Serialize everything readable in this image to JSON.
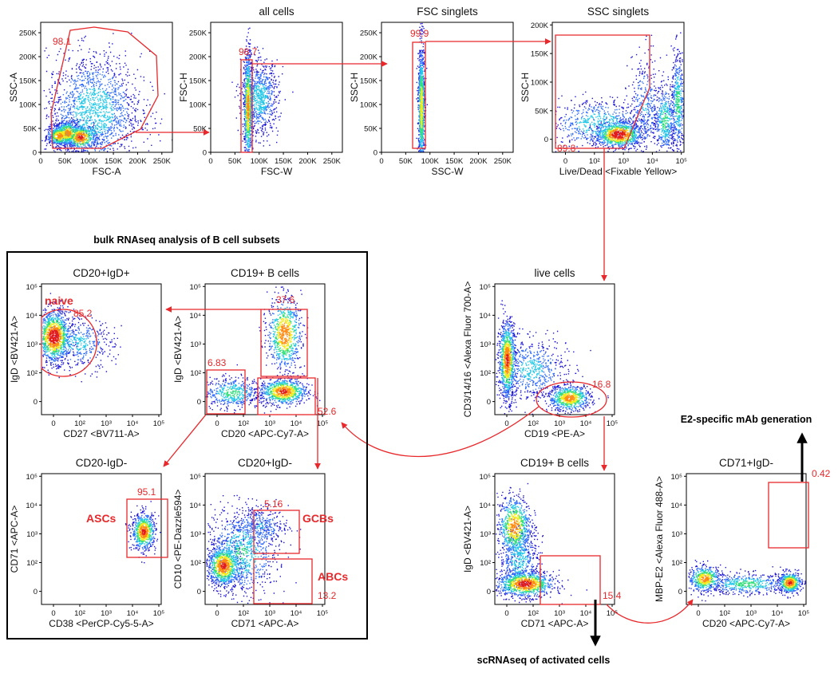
{
  "colors": {
    "gate": "#e8282b",
    "text": "#111111",
    "arrow_black": "#000000",
    "density": [
      "#1b14d8",
      "#2f6bff",
      "#22c7e8",
      "#32e07a",
      "#f2ea1a",
      "#ff8a12",
      "#e31a1c"
    ]
  },
  "annotations": {
    "bulk_label": "bulk RNAseq analysis of B cell subsets",
    "mab_label": "E2-specific mAb generation",
    "scrna_label": "scRNAseq of activated cells"
  },
  "panels": [
    {
      "id": "p1",
      "title": "",
      "xlabel": "FSC-A",
      "ylabel": "SSC-A",
      "scale": "linear",
      "xticks": [
        "0",
        "50K",
        "100K",
        "150K",
        "200K",
        "250K"
      ],
      "yticks": [
        "0",
        "50K",
        "100K",
        "150K",
        "200K",
        "250K"
      ],
      "gates": [
        {
          "label": "98.1"
        }
      ],
      "pops": [
        {
          "x": 0.14,
          "y": 0.13,
          "sx": 0.05,
          "sy": 0.04,
          "n": 450,
          "w": 1.6
        },
        {
          "x": 0.2,
          "y": 0.15,
          "sx": 0.05,
          "sy": 0.05,
          "n": 450,
          "w": 1.6
        },
        {
          "x": 0.3,
          "y": 0.12,
          "sx": 0.06,
          "sy": 0.05,
          "n": 500,
          "w": 1.8
        },
        {
          "x": 0.4,
          "y": 0.32,
          "sx": 0.18,
          "sy": 0.22,
          "n": 1700,
          "w": 0.8
        }
      ]
    },
    {
      "id": "p2",
      "title": "all cells",
      "xlabel": "FSC-W",
      "ylabel": "FSC-H",
      "scale": "linear",
      "xticks": [
        "0",
        "50K",
        "100K",
        "150K",
        "200K",
        "250K"
      ],
      "yticks": [
        "0",
        "50K",
        "100K",
        "150K",
        "200K",
        "250K"
      ],
      "gates": [
        {
          "label": "98.7"
        }
      ],
      "pops": [
        {
          "x": 0.28,
          "y": 0.35,
          "sx": 0.015,
          "sy": 0.22,
          "n": 900,
          "w": 1.6
        },
        {
          "x": 0.37,
          "y": 0.42,
          "sx": 0.07,
          "sy": 0.14,
          "n": 800,
          "w": 0.8
        }
      ]
    },
    {
      "id": "p3",
      "title": "FSC singlets",
      "xlabel": "SSC-W",
      "ylabel": "SSC-H",
      "scale": "linear",
      "xticks": [
        "0",
        "50K",
        "100K",
        "150K",
        "200K",
        "250K"
      ],
      "yticks": [
        "0",
        "50K",
        "100K",
        "150K",
        "200K",
        "250K"
      ],
      "gates": [
        {
          "label": "99.9"
        }
      ],
      "pops": [
        {
          "x": 0.3,
          "y": 0.35,
          "sx": 0.012,
          "sy": 0.25,
          "n": 1000,
          "w": 1.4
        }
      ]
    },
    {
      "id": "p4",
      "title": "SSC singlets",
      "xlabel": "Live/Dead <Fixable Yellow>",
      "ylabel": "SSC-H",
      "scale": "log",
      "xticks": [
        "0",
        "10²",
        "10³",
        "10⁴",
        "10⁵"
      ],
      "yticks": [
        "0",
        "50K",
        "100K",
        "150K",
        "200K",
        "250K"
      ],
      "gates": [
        {
          "label": "89.8"
        }
      ],
      "pops": [
        {
          "x": 0.5,
          "y": 0.14,
          "sx": 0.09,
          "sy": 0.05,
          "n": 900,
          "w": 2
        },
        {
          "x": 0.35,
          "y": 0.22,
          "sx": 0.2,
          "sy": 0.1,
          "n": 700,
          "w": 0.8
        },
        {
          "x": 0.85,
          "y": 0.25,
          "sx": 0.04,
          "sy": 0.14,
          "n": 450,
          "w": 1
        },
        {
          "x": 0.95,
          "y": 0.38,
          "sx": 0.025,
          "sy": 0.2,
          "n": 450,
          "w": 1
        },
        {
          "x": 0.7,
          "y": 0.35,
          "sx": 0.06,
          "sy": 0.2,
          "n": 350,
          "w": 0.6
        }
      ]
    },
    {
      "id": "p5",
      "title": "live cells",
      "xlabel": "CD19 <PE-A>",
      "ylabel": "CD3/14/16 <Alexa Fluor 700-A>",
      "scale": "log",
      "xticks": [
        "0",
        "10²",
        "10³",
        "10⁴",
        "10⁵"
      ],
      "yticks": [
        "0",
        "10²",
        "10³",
        "10⁴",
        "10⁵"
      ],
      "gates": [
        {
          "label": "16.8"
        }
      ],
      "pops": [
        {
          "x": 0.1,
          "y": 0.42,
          "sx": 0.035,
          "sy": 0.15,
          "n": 1000,
          "w": 1.8
        },
        {
          "x": 0.62,
          "y": 0.13,
          "sx": 0.09,
          "sy": 0.05,
          "n": 700,
          "w": 1.6
        },
        {
          "x": 0.3,
          "y": 0.35,
          "sx": 0.15,
          "sy": 0.12,
          "n": 600,
          "w": 0.7
        }
      ]
    },
    {
      "id": "p6",
      "title": "CD19+ B cells",
      "xlabel": "CD20 <APC-Cy7-A>",
      "ylabel": "IgD <BV421-A>",
      "scale": "log",
      "xticks": [
        "0",
        "10²",
        "10³",
        "10⁴",
        "10⁵"
      ],
      "yticks": [
        "0",
        "10²",
        "10³",
        "10⁴",
        "10⁵"
      ],
      "gates": [
        {
          "label": "37.6"
        },
        {
          "label": "6.83"
        },
        {
          "label": "52.6"
        }
      ],
      "pops": [
        {
          "x": 0.66,
          "y": 0.62,
          "sx": 0.07,
          "sy": 0.14,
          "n": 800,
          "w": 1.7
        },
        {
          "x": 0.65,
          "y": 0.18,
          "sx": 0.1,
          "sy": 0.05,
          "n": 800,
          "w": 1.8
        },
        {
          "x": 0.22,
          "y": 0.17,
          "sx": 0.12,
          "sy": 0.06,
          "n": 500,
          "w": 1
        }
      ]
    },
    {
      "id": "p7",
      "title": "CD20+IgD+",
      "xlabel": "CD27 <BV711-A>",
      "ylabel": "IgD <BV421-A>",
      "scale": "log",
      "xticks": [
        "0",
        "10²",
        "10³",
        "10⁴",
        "10⁵"
      ],
      "yticks": [
        "0",
        "10²",
        "10³",
        "10⁴",
        "10⁵"
      ],
      "gates": [
        {
          "label": "85.2"
        }
      ],
      "labels": [
        "naive"
      ],
      "pops": [
        {
          "x": 0.1,
          "y": 0.6,
          "sx": 0.07,
          "sy": 0.1,
          "n": 1200,
          "w": 2
        },
        {
          "x": 0.3,
          "y": 0.55,
          "sx": 0.15,
          "sy": 0.1,
          "n": 450,
          "w": 0.7
        }
      ]
    },
    {
      "id": "p8",
      "title": "CD20-IgD-",
      "xlabel": "CD38 <PerCP-Cy5-5-A>",
      "ylabel": "CD71 <APC-A>",
      "scale": "log",
      "xticks": [
        "0",
        "10²",
        "10³",
        "10⁴",
        "10⁵"
      ],
      "yticks": [
        "0",
        "10²",
        "10³",
        "10⁴",
        "10⁵"
      ],
      "gates": [
        {
          "label": "95.1"
        }
      ],
      "labels": [
        "ASCs"
      ],
      "pops": [
        {
          "x": 0.85,
          "y": 0.56,
          "sx": 0.05,
          "sy": 0.07,
          "n": 700,
          "w": 1.8
        }
      ]
    },
    {
      "id": "p9",
      "title": "CD20+IgD-",
      "xlabel": "CD71 <APC-A>",
      "ylabel": "CD10 <PE-Dazzle594>",
      "scale": "log",
      "xticks": [
        "0",
        "10²",
        "10³",
        "10⁴",
        "10⁵"
      ],
      "yticks": [
        "0",
        "10²",
        "10³",
        "10⁴",
        "10⁵"
      ],
      "gates": [
        {
          "label": "5.16"
        },
        {
          "label": "13.2"
        }
      ],
      "labels": [
        "GCBs",
        "ABCs"
      ],
      "pops": [
        {
          "x": 0.15,
          "y": 0.3,
          "sx": 0.07,
          "sy": 0.08,
          "n": 900,
          "w": 1.8
        },
        {
          "x": 0.3,
          "y": 0.4,
          "sx": 0.15,
          "sy": 0.17,
          "n": 900,
          "w": 0.9
        },
        {
          "x": 0.45,
          "y": 0.6,
          "sx": 0.12,
          "sy": 0.08,
          "n": 350,
          "w": 0.6
        }
      ]
    },
    {
      "id": "p10",
      "title": "CD19+ B cells",
      "xlabel": "CD71 <APC-A>",
      "ylabel": "IgD <BV421-A>",
      "scale": "log",
      "xticks": [
        "0",
        "10²",
        "10³",
        "10⁴",
        "10⁵"
      ],
      "yticks": [
        "0",
        "10²",
        "10³",
        "10⁴",
        "10⁵"
      ],
      "gates": [
        {
          "label": "15.4"
        }
      ],
      "pops": [
        {
          "x": 0.16,
          "y": 0.6,
          "sx": 0.07,
          "sy": 0.12,
          "n": 800,
          "w": 1.6
        },
        {
          "x": 0.25,
          "y": 0.16,
          "sx": 0.12,
          "sy": 0.05,
          "n": 1000,
          "w": 1.9
        },
        {
          "x": 0.2,
          "y": 0.35,
          "sx": 0.08,
          "sy": 0.13,
          "n": 500,
          "w": 0.8
        }
      ]
    },
    {
      "id": "p11",
      "title": "CD71+IgD-",
      "xlabel": "CD20 <APC-Cy7-A>",
      "ylabel": "MBP-E2 <Alexa Fluor 488-A>",
      "scale": "log",
      "xticks": [
        "0",
        "10²",
        "10³",
        "10⁴",
        "10⁵"
      ],
      "yticks": [
        "0",
        "10²",
        "10³",
        "10⁴",
        "10⁵"
      ],
      "gates": [
        {
          "label": "0.42"
        }
      ],
      "pops": [
        {
          "x": 0.15,
          "y": 0.2,
          "sx": 0.07,
          "sy": 0.05,
          "n": 500,
          "w": 1.6
        },
        {
          "x": 0.5,
          "y": 0.16,
          "sx": 0.18,
          "sy": 0.04,
          "n": 500,
          "w": 1
        },
        {
          "x": 0.86,
          "y": 0.17,
          "sx": 0.05,
          "sy": 0.04,
          "n": 500,
          "w": 1.8
        }
      ]
    }
  ]
}
